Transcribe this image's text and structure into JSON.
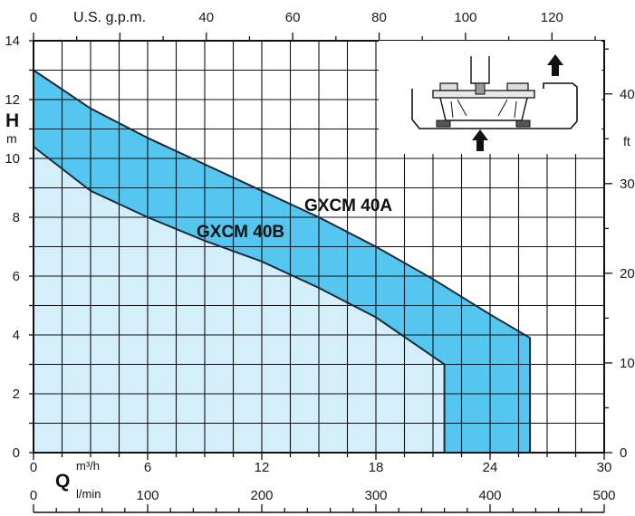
{
  "chart_data": {
    "type": "area",
    "axes": {
      "left": {
        "label": "H",
        "unit": "m",
        "min": 0,
        "max": 14,
        "ticks": [
          0,
          2,
          4,
          6,
          8,
          10,
          12,
          14
        ]
      },
      "right": {
        "unit": "ft",
        "min": 0,
        "ticks": [
          0,
          10,
          20,
          30,
          40
        ],
        "tick_labels": [
          "0",
          "10",
          "20",
          "30",
          "40"
        ]
      },
      "bottom": {
        "label": "Q",
        "unit": "m³/h",
        "min": 0,
        "max": 30,
        "ticks": [
          0,
          6,
          12,
          18,
          24,
          30
        ]
      },
      "bottom2": {
        "unit": "l/min",
        "min": 0,
        "max": 500,
        "ticks": [
          0,
          100,
          200,
          300,
          400,
          500
        ]
      },
      "top": {
        "unit": "U.S. g.p.m.",
        "min": 0,
        "ticks": [
          0,
          40,
          60,
          80,
          100,
          120
        ],
        "tick_labels": [
          "0",
          "40",
          "60",
          "80",
          "100",
          "120"
        ]
      }
    },
    "grid": true,
    "series": [
      {
        "name": "GXCM 40A",
        "color": "#55c6ef",
        "x": [
          0,
          3,
          6,
          9,
          12,
          15,
          18,
          21,
          24,
          26.1
        ],
        "y": [
          13.0,
          11.7,
          10.7,
          9.8,
          8.9,
          8.0,
          7.0,
          5.9,
          4.7,
          3.9
        ]
      },
      {
        "name": "GXCM 40B",
        "color": "#a9e0f5",
        "x": [
          0,
          3,
          6,
          9,
          12,
          15,
          18,
          21.6
        ],
        "y": [
          10.4,
          8.9,
          8.0,
          7.2,
          6.5,
          5.6,
          4.6,
          3.0
        ]
      }
    ],
    "series_labels": [
      "GXCM 40A",
      "GXCM 40B"
    ],
    "inset": {
      "type": "pump-diagram",
      "icon": "submersible-pump-icon"
    }
  }
}
